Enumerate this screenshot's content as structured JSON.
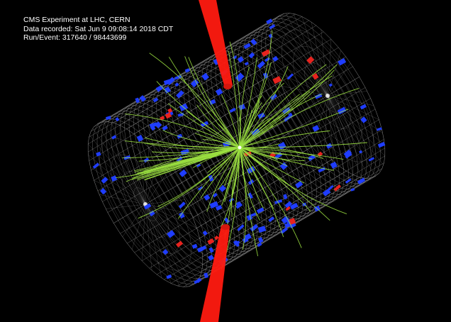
{
  "event_info": {
    "experiment": "CMS Experiment at LHC, CERN",
    "recorded": "Data recorded: Sat Jun  9 09:08:14 2018 CDT",
    "run_event": "Run/Event: 317640 / 98443699"
  },
  "colors": {
    "background": "#000000",
    "detector_wireframe": "#c8c8c8",
    "tracks": "#9be040",
    "hcal_deposits": "#1f3dff",
    "ecal_deposits": "#e8231e",
    "muon_jets": "#ff1a10",
    "text": "#ffffff"
  },
  "objects": {
    "detector": "tracker-cylinder",
    "jet_cones": [
      "upper-red-cone",
      "lower-red-cone"
    ],
    "tracks": "green-charged-tracks",
    "deposits": [
      "blue-hcal-towers",
      "red-ecal-towers"
    ]
  }
}
